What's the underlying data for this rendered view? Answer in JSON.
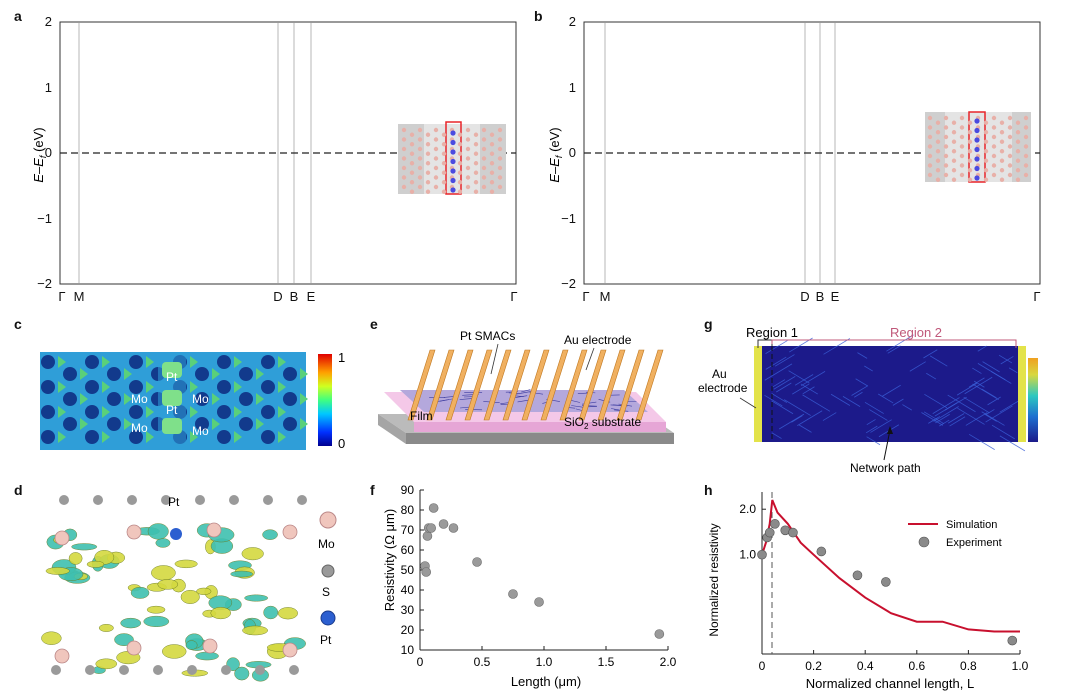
{
  "panels": {
    "a": {
      "label": "a",
      "ylabel_main": "E–E",
      "ylabel_sub": "f",
      "ylabel_unit": " (eV)",
      "yticks": [
        "2",
        "1",
        "0",
        "−1",
        "−2"
      ],
      "xticks": [
        "Γ",
        "M",
        "D",
        "B",
        "E",
        "Γ"
      ]
    },
    "b": {
      "label": "b",
      "ylabel_main": "E–E",
      "ylabel_sub": "f",
      "ylabel_unit": " (eV)",
      "yticks": [
        "2",
        "1",
        "0",
        "−1",
        "−2"
      ],
      "xticks": [
        "Γ",
        "M",
        "D",
        "B",
        "E",
        "Γ"
      ]
    },
    "c": {
      "label": "c",
      "atom_labels": [
        "Mo",
        "Pt",
        "Mo",
        "Pt",
        "Mo",
        "Mo",
        "Mo"
      ],
      "colorbar_max": "1",
      "colorbar_min": "0"
    },
    "d": {
      "label": "d",
      "top_label": "Pt",
      "legend": [
        "Mo",
        "S",
        "Pt"
      ]
    },
    "e": {
      "label": "e",
      "labels": {
        "pt": "Pt SMACs",
        "au": "Au electrode",
        "film": "Film",
        "substrate": "SiO",
        "substrate_sub": "2",
        "substrate_rest": " substrate"
      }
    },
    "g": {
      "label": "g",
      "region1": "Region 1",
      "region2": "Region 2",
      "au_line1": "Au",
      "au_line2": "electrode",
      "network": "Network path"
    }
  },
  "colors": {
    "band_gray": "#7a7a7a",
    "band_red": "#e8252a",
    "sim_red": "#c8102e",
    "exp_gray": "#8a8a8a"
  },
  "chart_data": [
    {
      "panel": "f",
      "label": "f",
      "type": "scatter",
      "xlabel": "Length (μm)",
      "ylabel": "Resistivity (Ω μm)",
      "xlim": [
        0,
        2.0
      ],
      "ylim": [
        10,
        90
      ],
      "xticks": [
        "0",
        "0.5",
        "1.0",
        "1.5",
        "2.0"
      ],
      "xtick_vals": [
        0,
        0.5,
        1.0,
        1.5,
        2.0
      ],
      "yticks": [
        "90",
        "80",
        "70",
        "60",
        "50",
        "40",
        "30",
        "20",
        "10"
      ],
      "ytick_vals": [
        90,
        80,
        70,
        60,
        50,
        40,
        30,
        20,
        10
      ],
      "x": [
        0.04,
        0.05,
        0.06,
        0.07,
        0.09,
        0.11,
        0.19,
        0.27,
        0.46,
        0.75,
        0.96,
        1.93
      ],
      "y": [
        52,
        49,
        67,
        71,
        71,
        81,
        73,
        71,
        54,
        38,
        34,
        18
      ]
    },
    {
      "panel": "h",
      "label": "h",
      "type": "line",
      "xlabel": "Normalized channel length, L",
      "ylabel": "Normalized resistivity",
      "xlim": [
        0,
        1.0
      ],
      "ylog": true,
      "ylim": [
        0.22,
        2.6
      ],
      "xticks": [
        "0",
        "0.2",
        "0.4",
        "0.6",
        "0.8",
        "1.0"
      ],
      "xtick_vals": [
        0,
        0.2,
        0.4,
        0.6,
        0.8,
        1.0
      ],
      "yticks": [
        "2.0",
        "1.0"
      ],
      "ytick_vals": [
        2.0,
        1.0
      ],
      "series": [
        {
          "name": "Simulation",
          "kind": "line",
          "x": [
            0.0,
            0.015,
            0.03,
            0.04,
            0.06,
            0.1,
            0.15,
            0.2,
            0.3,
            0.4,
            0.5,
            0.6,
            0.7,
            0.8,
            0.9,
            1.0
          ],
          "y": [
            1.0,
            1.2,
            1.6,
            2.3,
            1.9,
            1.6,
            1.2,
            1.0,
            0.7,
            0.52,
            0.41,
            0.36,
            0.36,
            0.32,
            0.31,
            0.31
          ]
        },
        {
          "name": "Experiment",
          "kind": "scatter",
          "x": [
            0.0,
            0.02,
            0.03,
            0.05,
            0.09,
            0.12,
            0.23,
            0.37,
            0.48,
            0.97
          ],
          "y": [
            1.0,
            1.3,
            1.4,
            1.6,
            1.45,
            1.4,
            1.05,
            0.73,
            0.66,
            0.27
          ]
        }
      ]
    }
  ]
}
